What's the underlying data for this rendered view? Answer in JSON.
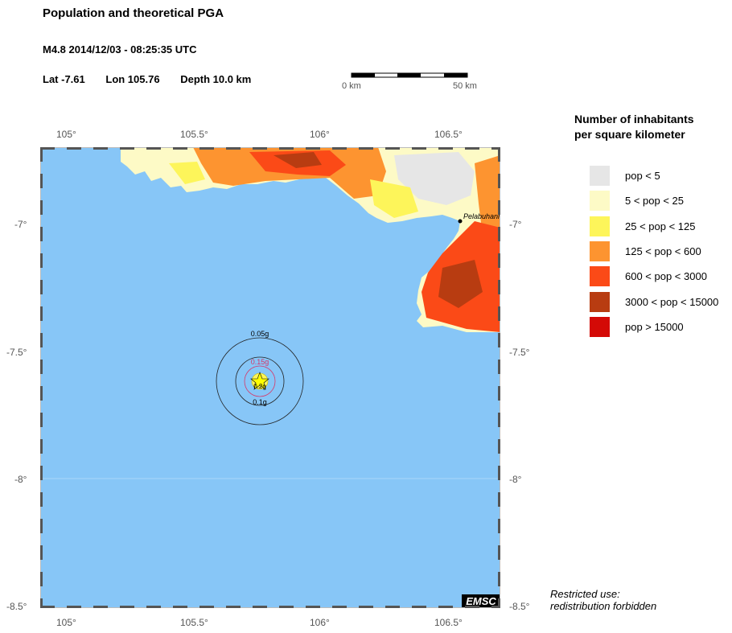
{
  "header": {
    "title": "Population and theoretical PGA",
    "event": "M4.8  2014/12/03 - 08:25:35 UTC",
    "lat": "Lat -7.61",
    "lon": "Lon 105.76",
    "depth": "Depth  10.0 km"
  },
  "scale_bar": {
    "start_label": "0 km",
    "end_label": "50 km"
  },
  "axes": {
    "x_ticks": [
      "105°",
      "105.5°",
      "106°",
      "106.5°"
    ],
    "y_ticks": [
      "-7°",
      "-7.5°",
      "-8°",
      "-8.5°"
    ],
    "lon_range": [
      104.9,
      106.7
    ],
    "lat_range": [
      -6.7,
      -8.5
    ]
  },
  "map": {
    "city": "Pelabuhanratu",
    "pga_rings": [
      "0.05g",
      "0.15g",
      "0.2g",
      "0.1g"
    ],
    "credit": "EMSC",
    "colors": {
      "sea": "#87c6f7",
      "land_grey": "#e6e6e6"
    }
  },
  "legend": {
    "title_line1": "Number of inhabitants",
    "title_line2": "per square kilometer",
    "items": [
      {
        "label": "pop < 5",
        "color": "#e6e6e6"
      },
      {
        "label": "5 < pop < 25",
        "color": "#fdfac6"
      },
      {
        "label": "25 < pop < 125",
        "color": "#fdf55a"
      },
      {
        "label": "125 < pop < 600",
        "color": "#fd9430"
      },
      {
        "label": "600 < pop < 3000",
        "color": "#fb4a17"
      },
      {
        "label": "3000 < pop < 15000",
        "color": "#b83c11"
      },
      {
        "label": "pop > 15000",
        "color": "#d40a06"
      }
    ]
  },
  "restricted": {
    "line1": "Restricted use:",
    "line2": "redistribution forbidden"
  }
}
